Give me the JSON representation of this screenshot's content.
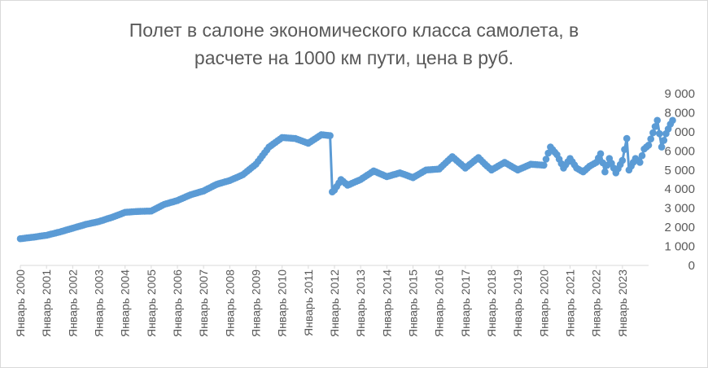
{
  "chart_data": {
    "type": "line",
    "title_lines": [
      "Полет в салоне экономического класса самолета, в",
      "расчете на 1000 км пути, цена в руб."
    ],
    "xlabel": "",
    "ylabel": "",
    "ylim": [
      0,
      9000
    ],
    "ytick_labels": [
      "0",
      "1 000",
      "2 000",
      "3 000",
      "4 000",
      "5 000",
      "6 000",
      "7 000",
      "8 000",
      "9 000"
    ],
    "ytick_values": [
      0,
      1000,
      2000,
      3000,
      4000,
      5000,
      6000,
      7000,
      8000,
      9000
    ],
    "yaxis_side": "right",
    "grid": false,
    "legend": "none",
    "x_start": "2000-01",
    "x_end": "2023-12",
    "xtick_labels": [
      "Январь 2000",
      "Январь 2001",
      "Январь 2002",
      "Январь 2003",
      "Январь 2004",
      "Январь 2005",
      "Январь 2006",
      "Январь 2007",
      "Январь 2008",
      "Январь 2009",
      "Январь 2010",
      "Январь 2011",
      "Январь 2012",
      "Январь 2013",
      "Январь 2014",
      "Январь 2015",
      "Январь 2016",
      "Январь 2017",
      "Январь 2018",
      "Январь 2019",
      "Январь 2020",
      "Январь 2021",
      "Январь 2022",
      "Январь 2023"
    ],
    "series": [
      {
        "color": "#5b9bd5",
        "marker": "circle",
        "points": [
          [
            "2000-01",
            1400
          ],
          [
            "2000-07",
            1480
          ],
          [
            "2001-01",
            1580
          ],
          [
            "2001-07",
            1750
          ],
          [
            "2002-01",
            1950
          ],
          [
            "2002-07",
            2150
          ],
          [
            "2003-01",
            2300
          ],
          [
            "2003-07",
            2520
          ],
          [
            "2004-01",
            2780
          ],
          [
            "2004-07",
            2830
          ],
          [
            "2005-01",
            2850
          ],
          [
            "2005-07",
            3200
          ],
          [
            "2006-01",
            3400
          ],
          [
            "2006-07",
            3700
          ],
          [
            "2007-01",
            3900
          ],
          [
            "2007-07",
            4250
          ],
          [
            "2008-01",
            4450
          ],
          [
            "2008-07",
            4750
          ],
          [
            "2009-01",
            5300
          ],
          [
            "2009-07",
            6200
          ],
          [
            "2010-01",
            6700
          ],
          [
            "2010-07",
            6650
          ],
          [
            "2011-01",
            6400
          ],
          [
            "2011-07",
            6850
          ],
          [
            "2011-11",
            6800
          ],
          [
            "2011-12",
            3850
          ],
          [
            "2012-01",
            3950
          ],
          [
            "2012-04",
            4500
          ],
          [
            "2012-07",
            4200
          ],
          [
            "2013-01",
            4500
          ],
          [
            "2013-07",
            4950
          ],
          [
            "2014-01",
            4650
          ],
          [
            "2014-07",
            4850
          ],
          [
            "2015-01",
            4600
          ],
          [
            "2015-07",
            5000
          ],
          [
            "2016-01",
            5050
          ],
          [
            "2016-07",
            5700
          ],
          [
            "2017-01",
            5100
          ],
          [
            "2017-07",
            5650
          ],
          [
            "2017-10",
            5300
          ],
          [
            "2018-01",
            5000
          ],
          [
            "2018-07",
            5400
          ],
          [
            "2019-01",
            5000
          ],
          [
            "2019-07",
            5300
          ],
          [
            "2020-01",
            5250
          ],
          [
            "2020-04",
            6200
          ],
          [
            "2020-07",
            5800
          ],
          [
            "2020-10",
            5100
          ],
          [
            "2021-01",
            5600
          ],
          [
            "2021-04",
            5100
          ],
          [
            "2021-07",
            4900
          ],
          [
            "2021-10",
            5200
          ],
          [
            "2022-01",
            5400
          ],
          [
            "2022-03",
            5850
          ],
          [
            "2022-05",
            4900
          ],
          [
            "2022-07",
            5600
          ],
          [
            "2022-10",
            4850
          ],
          [
            "2023-01",
            5500
          ],
          [
            "2023-03",
            6650
          ],
          [
            "2023-04",
            5000
          ],
          [
            "2023-07",
            5600
          ],
          [
            "2023-09",
            5400
          ],
          [
            "2023-11",
            6100
          ],
          [
            "2024-01",
            6300
          ],
          [
            "2024-03",
            6950
          ],
          [
            "2024-05",
            7600
          ],
          [
            "2024-07",
            6200
          ],
          [
            "2024-09",
            6900
          ],
          [
            "2024-11",
            7400
          ],
          [
            "2024-12",
            7600
          ]
        ]
      }
    ]
  }
}
